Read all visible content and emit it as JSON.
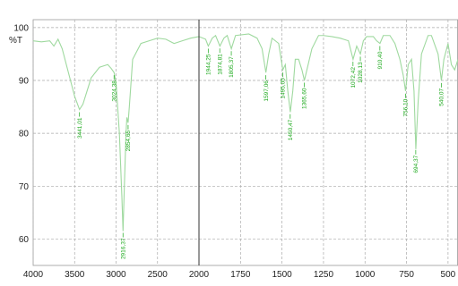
{
  "chart_data": [
    {
      "type": "line",
      "y_label": "%T",
      "xlim": [
        4000,
        2000
      ],
      "xticks": [
        4000,
        3500,
        3000,
        2500,
        2000
      ],
      "ylim": [
        55,
        101.5
      ],
      "yticks": [
        60,
        70,
        80,
        90,
        100
      ],
      "grid": true,
      "series": [
        {
          "color": "#9fd99f",
          "x": [
            4000,
            3900,
            3800,
            3750,
            3700,
            3650,
            3600,
            3550,
            3500,
            3441,
            3400,
            3350,
            3300,
            3200,
            3100,
            3060,
            3024,
            3000,
            2960,
            2930,
            2916,
            2900,
            2880,
            2870,
            2855,
            2840,
            2800,
            2700,
            2600,
            2500,
            2400,
            2300,
            2200,
            2100,
            2000
          ],
          "values": [
            97.5,
            97.3,
            97.5,
            96.5,
            97.8,
            96.0,
            93,
            90,
            87,
            84.5,
            85.5,
            88,
            90.5,
            92.5,
            93,
            92.3,
            91.5,
            89.5,
            80,
            68,
            61.5,
            70,
            80,
            83,
            82,
            85,
            94,
            97,
            97.5,
            98,
            97.8,
            97.0,
            97.5,
            98,
            98.3
          ]
        }
      ],
      "annotations": [
        {
          "x": 3441.01,
          "label": "3441,01"
        },
        {
          "x": 3024.38,
          "label": "3024,38"
        },
        {
          "x": 2916.37,
          "label": "2916,37"
        },
        {
          "x": 2854.65,
          "label": "2854,65"
        }
      ]
    },
    {
      "type": "line",
      "xlim": [
        2000,
        440
      ],
      "xticks": [
        1750,
        1500,
        1250,
        1000,
        750,
        500
      ],
      "series": [
        {
          "color": "#9fd99f",
          "x": [
            2000,
            1960,
            1944,
            1920,
            1900,
            1874,
            1850,
            1830,
            1805,
            1780,
            1700,
            1650,
            1620,
            1597,
            1580,
            1560,
            1520,
            1495,
            1480,
            1465,
            1450,
            1435,
            1420,
            1400,
            1380,
            1365,
            1350,
            1320,
            1280,
            1250,
            1200,
            1150,
            1100,
            1072,
            1050,
            1028,
            1010,
            990,
            950,
            930,
            910,
            890,
            850,
            820,
            790,
            770,
            756,
            740,
            720,
            705,
            694,
            680,
            660,
            620,
            600,
            560,
            540,
            525,
            500,
            480,
            460,
            440
          ],
          "values": [
            98.3,
            97.8,
            96.5,
            98,
            98.5,
            96.5,
            98,
            98.5,
            96,
            98.5,
            98.8,
            98,
            96,
            91.5,
            95,
            98,
            97,
            92,
            93,
            88,
            84,
            88,
            94,
            94,
            92,
            90,
            92,
            96,
            98.5,
            98.5,
            98.3,
            98,
            97.5,
            94,
            96.5,
            95,
            97.5,
            98.3,
            98.3,
            97.5,
            97,
            98.5,
            98.5,
            97,
            94,
            91,
            88,
            93,
            94,
            88,
            77,
            86,
            95,
            98.5,
            98.5,
            95,
            90,
            94,
            97,
            93,
            92,
            94
          ]
        }
      ],
      "annotations": [
        {
          "x": 1944.25,
          "label": "1944,25"
        },
        {
          "x": 1874.81,
          "label": "1874,81"
        },
        {
          "x": 1805.37,
          "label": "1805,37"
        },
        {
          "x": 1597.06,
          "label": "1597,06"
        },
        {
          "x": 1495.05,
          "label": "1495,05"
        },
        {
          "x": 1450.47,
          "label": "1450,47"
        },
        {
          "x": 1365.6,
          "label": "1365,60"
        },
        {
          "x": 1072.42,
          "label": "1072,42"
        },
        {
          "x": 1028.13,
          "label": "1028,13"
        },
        {
          "x": 910.4,
          "label": "910,40"
        },
        {
          "x": 756.1,
          "label": "756,10"
        },
        {
          "x": 694.37,
          "label": "694,37"
        },
        {
          "x": 540.07,
          "label": "540,07"
        }
      ]
    }
  ]
}
